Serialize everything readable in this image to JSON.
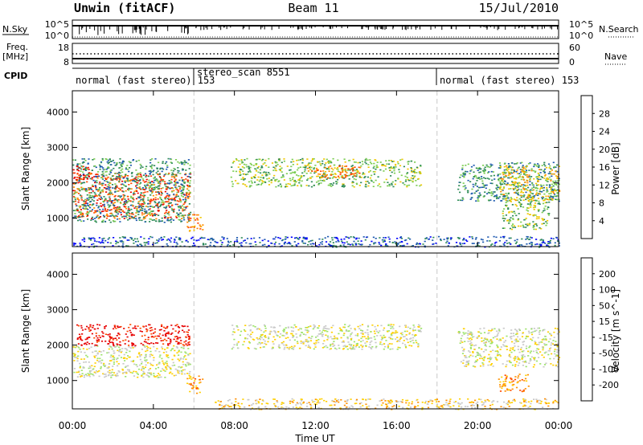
{
  "header": {
    "station": "Unwin (fitACF)",
    "beam": "Beam 11",
    "date": "15/Jul/2010"
  },
  "small_panels": {
    "nsky_label": "N.Sky",
    "nsearch_label": "N.Search",
    "noise_ticks": [
      "10^5",
      "10^0"
    ],
    "freq_label": "Freq.",
    "freq_unit": "[MHz]",
    "freq_ticks": [
      "18",
      "8"
    ],
    "nave_label": "Nave",
    "nave_ticks": [
      "60",
      "0"
    ],
    "cpid_label": "CPID",
    "cpid_segments": [
      {
        "label": "normal (fast stereo) 153",
        "start_h": 0,
        "end_h": 6
      },
      {
        "label": "stereo_scan 8551",
        "start_h": 6,
        "end_h": 18
      },
      {
        "label": "normal (fast stereo) 153",
        "start_h": 18,
        "end_h": 24
      }
    ]
  },
  "chart_data": [
    {
      "type": "heatmap",
      "title": "",
      "xlabel": "",
      "ylabel": "Slant Range [km]",
      "xlim": [
        0,
        24
      ],
      "ylim": [
        200,
        4600
      ],
      "yticks": [
        1000,
        2000,
        3000,
        4000
      ],
      "colorbar_label": "Power [dB]",
      "colorbar_ticks": [
        4,
        8,
        12,
        16,
        20,
        24,
        28
      ],
      "colorbar_colors": [
        "#0000ff",
        "#1e5ab0",
        "#2e8b57",
        "#7ccd52",
        "#f0c800",
        "#ff8c00",
        "#ff4500",
        "#e60000"
      ],
      "scatter_regions": [
        {
          "t0": 0.0,
          "t1": 5.8,
          "r0": 1000,
          "r1": 2300,
          "level": 6,
          "desc": "strong band"
        },
        {
          "t0": 0.0,
          "t1": 5.8,
          "r0": 900,
          "r1": 2700,
          "level": 2
        },
        {
          "t0": 0.0,
          "t1": 0.8,
          "r0": 2100,
          "r1": 2500,
          "level": 7
        },
        {
          "t0": 5.6,
          "t1": 6.4,
          "r0": 650,
          "r1": 1150,
          "level": 5
        },
        {
          "t0": 7.8,
          "t1": 17.2,
          "r0": 1900,
          "r1": 2700,
          "level": 3
        },
        {
          "t0": 11.5,
          "t1": 14.2,
          "r0": 2150,
          "r1": 2500,
          "level": 5
        },
        {
          "t0": 19.0,
          "t1": 24.0,
          "r0": 1500,
          "r1": 2600,
          "level": 2
        },
        {
          "t0": 21.0,
          "t1": 24.0,
          "r0": 1500,
          "r1": 2500,
          "level": 4
        },
        {
          "t0": 21.2,
          "t1": 23.5,
          "r0": 700,
          "r1": 1500,
          "level": 3
        },
        {
          "t0": 0.0,
          "t1": 24.0,
          "r0": 200,
          "r1": 500,
          "level": 1
        }
      ]
    },
    {
      "type": "heatmap",
      "title": "",
      "xlabel": "Time UT",
      "ylabel": "Slant Range [km]",
      "xlim": [
        0,
        24
      ],
      "ylim": [
        200,
        4600
      ],
      "xticks": [
        "00:00",
        "04:00",
        "08:00",
        "12:00",
        "16:00",
        "20:00",
        "00:00"
      ],
      "yticks": [
        1000,
        2000,
        3000,
        4000
      ],
      "colorbar_label": "Velocity [m s^-1]",
      "colorbar_ticks": [
        200,
        100,
        50,
        15,
        -15,
        -50,
        -100,
        -200
      ],
      "colorbar_colors": [
        "#1f3fb0",
        "#2e7d4f",
        "#6bbf3c",
        "#9ce36a",
        "#c8c8c8",
        "#ffd000",
        "#ff9000",
        "#ff4a00",
        "#e60000"
      ],
      "scatter_regions": [
        {
          "t0": 0.0,
          "t1": 5.8,
          "r0": 1100,
          "r1": 2000,
          "level": 4,
          "desc": "ground scatter"
        },
        {
          "t0": 0.2,
          "t1": 5.8,
          "r0": 2000,
          "r1": 2600,
          "level": 8
        },
        {
          "t0": 5.6,
          "t1": 6.4,
          "r0": 650,
          "r1": 1150,
          "level": 6
        },
        {
          "t0": 7.8,
          "t1": 17.2,
          "r0": 1900,
          "r1": 2600,
          "level": 4
        },
        {
          "t0": 19.0,
          "t1": 24.0,
          "r0": 1400,
          "r1": 2500,
          "level": 4
        },
        {
          "t0": 21.0,
          "t1": 22.5,
          "r0": 700,
          "r1": 1200,
          "level": 6
        },
        {
          "t0": 7.0,
          "t1": 24.0,
          "r0": 200,
          "r1": 500,
          "level": 5
        }
      ]
    }
  ]
}
